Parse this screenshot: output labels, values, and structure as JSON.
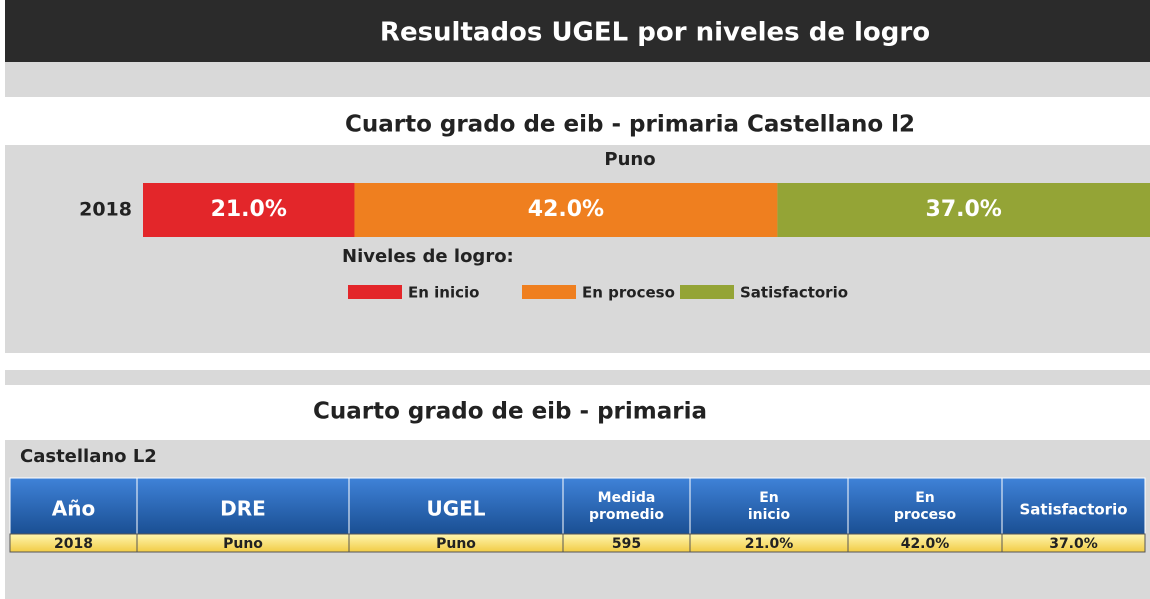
{
  "header": {
    "title": "Resultados UGEL por niveles de logro"
  },
  "chart_data": {
    "type": "bar",
    "stacked": true,
    "orientation": "horizontal",
    "title": "Cuarto grado de eib - primaria Castellano l2",
    "subtitle": "Puno",
    "categories": [
      "2018"
    ],
    "series": [
      {
        "name": "En inicio",
        "color": "#e3262a",
        "values": [
          21
        ],
        "value_labels": [
          "21.0%"
        ]
      },
      {
        "name": "En proceso",
        "color": "#ef7f1f",
        "values": [
          42
        ],
        "value_labels": [
          "42.0%"
        ]
      },
      {
        "name": "Satisfactorio",
        "color": "#94a436",
        "values": [
          37
        ],
        "value_labels": [
          "37.0%"
        ]
      }
    ],
    "xlim": [
      0,
      100
    ],
    "legend_title": "Niveles de logro:"
  },
  "table": {
    "title": "Cuarto grado de eib - primaria",
    "subtitle": "Castellano L2",
    "columns": [
      "Año",
      "DRE",
      "UGEL",
      "Medida promedio",
      "En inicio",
      "En proceso",
      "Satisfactorio"
    ],
    "rows": [
      [
        "2018",
        "Puno",
        "Puno",
        "595",
        "21.0%",
        "42.0%",
        "37.0%"
      ]
    ]
  }
}
